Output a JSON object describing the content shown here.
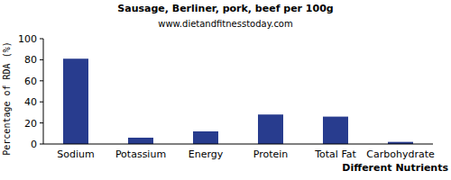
{
  "chart_data": {
    "type": "bar",
    "title": "Sausage, Berliner, pork, beef per 100g",
    "subtitle": "www.dietandfitnesstoday.com",
    "x_label": "Different Nutrients",
    "y_label": "Percentage of RDA (%)",
    "categories": [
      "Sodium",
      "Potassium",
      "Energy",
      "Protein",
      "Total Fat",
      "Carbohydrate"
    ],
    "values": [
      81,
      6,
      12,
      28,
      26,
      2
    ],
    "color": "#283c8e",
    "ylim": [
      0,
      100
    ],
    "yticks": [
      0,
      20,
      40,
      60,
      80,
      100
    ],
    "grid": false
  }
}
